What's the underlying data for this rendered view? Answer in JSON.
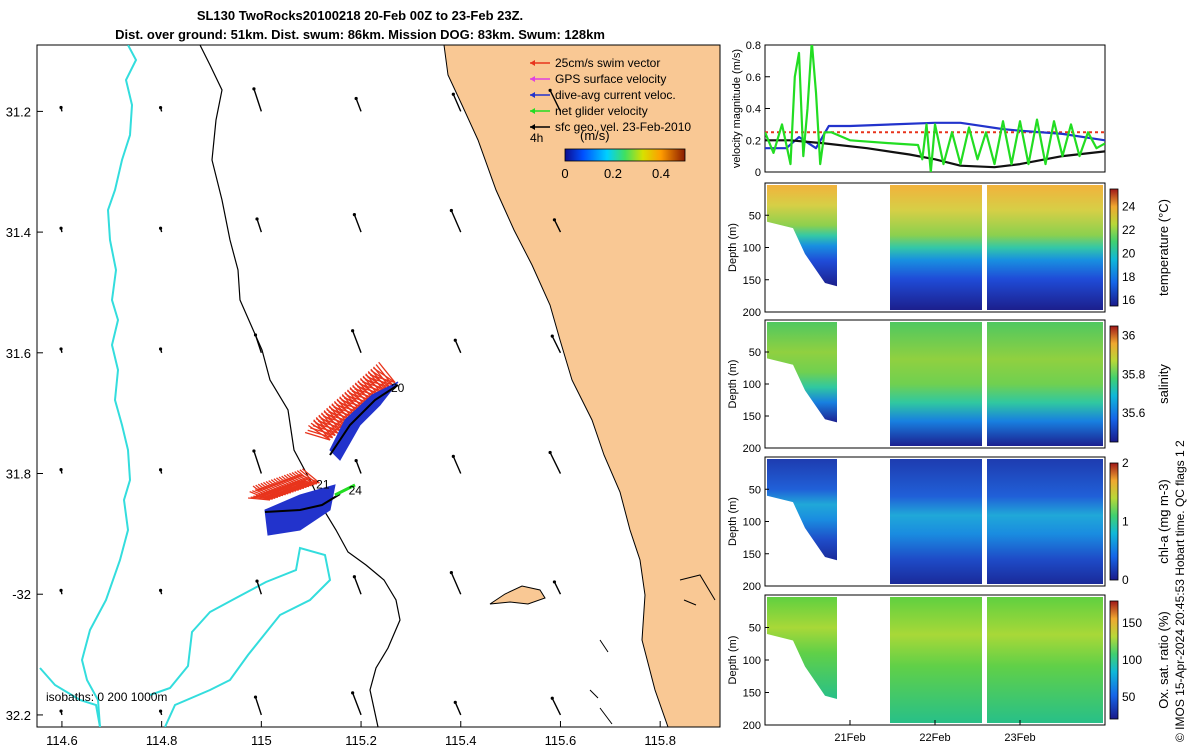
{
  "title": {
    "line1": "SL130 TwoRocks20100218 20-Feb 00Z to 23-Feb 23Z.",
    "line2": "Dist. over ground: 51km. Dist. swum: 86km. Mission DOG: 83km. Swum: 128km"
  },
  "map": {
    "lon_ticks": [
      "114.6",
      "114.8",
      "115",
      "115.2",
      "115.4",
      "115.6",
      "115.8"
    ],
    "lat_ticks": [
      "31.2",
      "31.4",
      "31.6",
      "31.8",
      "-32",
      "32.2"
    ],
    "xlim": [
      114.55,
      115.92
    ],
    "ylim": [
      -32.22,
      -31.09
    ],
    "legend": [
      {
        "label": "25cm/s swim vector",
        "color": "#e8341c"
      },
      {
        "label": "GPS surface velocity",
        "color": "#e040e0"
      },
      {
        "label": "dive-avg current veloc.",
        "color": "#2233cc"
      },
      {
        "label": "net glider velocity",
        "color": "#22dd22"
      },
      {
        "label": "sfc geo. vel. 23-Feb-2010",
        "color": "#000000"
      }
    ],
    "legend_tag": "4h",
    "colorbar": {
      "unit": "(m/s)",
      "ticks": [
        "0",
        "0.2",
        "0.4"
      ],
      "range": [
        0,
        0.5
      ]
    },
    "isobaths_label": "isobaths: 0   200  1000m",
    "day_labels": [
      {
        "text": "20",
        "lon": 115.26,
        "lat": -31.665
      },
      {
        "text": "21",
        "lon": 115.11,
        "lat": -31.825
      },
      {
        "text": "24",
        "lon": 115.175,
        "lat": -31.835
      }
    ],
    "colors": {
      "land": "#f9c894",
      "isobath_1000": "#33dddd",
      "coast": "#000000"
    }
  },
  "chart_data": [
    {
      "type": "line",
      "ylabel": "velocity magnitude (m/s)",
      "ylim": [
        0,
        0.8
      ],
      "yticks": [
        "0",
        "0.2",
        "0.4",
        "0.6",
        "0.8"
      ],
      "x_days": [
        20.0,
        24.0
      ],
      "series": [
        {
          "color": "#e8341c",
          "values": [
            [
              20.0,
              0.25
            ],
            [
              20.7,
              0.25
            ],
            [
              22.0,
              0.25
            ],
            [
              24.0,
              0.25
            ]
          ]
        },
        {
          "color": "#2233cc",
          "values": [
            [
              20.0,
              0.15
            ],
            [
              20.25,
              0.15
            ],
            [
              20.4,
              0.22
            ],
            [
              20.6,
              0.15
            ],
            [
              20.75,
              0.29
            ],
            [
              21.0,
              0.29
            ],
            [
              21.5,
              0.3
            ],
            [
              22.0,
              0.31
            ],
            [
              22.3,
              0.31
            ],
            [
              22.8,
              0.27
            ],
            [
              23.0,
              0.26
            ],
            [
              23.5,
              0.24
            ],
            [
              24.0,
              0.2
            ]
          ]
        },
        {
          "color": "#111111",
          "values": [
            [
              20.0,
              0.2
            ],
            [
              20.3,
              0.2
            ],
            [
              20.7,
              0.18
            ],
            [
              21.2,
              0.15
            ],
            [
              21.7,
              0.11
            ],
            [
              22.0,
              0.08
            ],
            [
              22.3,
              0.04
            ],
            [
              22.7,
              0.03
            ],
            [
              23.0,
              0.05
            ],
            [
              23.5,
              0.1
            ],
            [
              24.0,
              0.13
            ]
          ]
        },
        {
          "color": "#22dd22",
          "values": [
            [
              20.0,
              0.25
            ],
            [
              20.1,
              0.12
            ],
            [
              20.2,
              0.3
            ],
            [
              20.3,
              0.05
            ],
            [
              20.35,
              0.6
            ],
            [
              20.4,
              0.75
            ],
            [
              20.45,
              0.1
            ],
            [
              20.5,
              0.4
            ],
            [
              20.55,
              0.82
            ],
            [
              20.6,
              0.5
            ],
            [
              20.65,
              0.05
            ],
            [
              20.7,
              0.25
            ],
            [
              20.78,
              0.25
            ],
            [
              21.0,
              0.2
            ],
            [
              21.5,
              0.18
            ],
            [
              21.8,
              0.17
            ],
            [
              21.85,
              0.08
            ],
            [
              21.9,
              0.3
            ],
            [
              21.95,
              0.0
            ],
            [
              22.0,
              0.3
            ],
            [
              22.1,
              0.05
            ],
            [
              22.2,
              0.25
            ],
            [
              22.3,
              0.05
            ],
            [
              22.4,
              0.28
            ],
            [
              22.5,
              0.08
            ],
            [
              22.6,
              0.25
            ],
            [
              22.7,
              0.05
            ],
            [
              22.8,
              0.32
            ],
            [
              22.9,
              0.05
            ],
            [
              23.0,
              0.32
            ],
            [
              23.1,
              0.05
            ],
            [
              23.2,
              0.33
            ],
            [
              23.3,
              0.05
            ],
            [
              23.4,
              0.32
            ],
            [
              23.5,
              0.1
            ],
            [
              23.6,
              0.3
            ],
            [
              23.7,
              0.1
            ],
            [
              23.8,
              0.25
            ],
            [
              23.9,
              0.15
            ],
            [
              24.0,
              0.18
            ]
          ]
        }
      ]
    },
    {
      "type": "heatmap",
      "variable": "temperature",
      "colorbar_label": "temperature (°C)",
      "cticks": [
        "16",
        "18",
        "20",
        "22",
        "24"
      ],
      "crange": [
        15.5,
        25.5
      ],
      "ylabel": "Depth (m)",
      "yticks": [
        "50",
        "100",
        "150",
        "200"
      ],
      "ylim": [
        0,
        200
      ]
    },
    {
      "type": "heatmap",
      "variable": "salinity",
      "colorbar_label": "salinity",
      "cticks": [
        "35.6",
        "35.8",
        "36"
      ],
      "crange": [
        35.45,
        36.05
      ],
      "ylabel": "Depth (m)",
      "yticks": [
        "50",
        "100",
        "150",
        "200"
      ],
      "ylim": [
        0,
        200
      ]
    },
    {
      "type": "heatmap",
      "variable": "chl-a",
      "colorbar_label": "chl-a (mg m-3)",
      "cticks": [
        "0",
        "1",
        "2"
      ],
      "crange": [
        0,
        2
      ],
      "ylabel": "Depth (m)",
      "yticks": [
        "50",
        "100",
        "150",
        "200"
      ],
      "ylim": [
        0,
        200
      ]
    },
    {
      "type": "heatmap",
      "variable": "oxygen",
      "colorbar_label": "Ox. sat. ratio (%)",
      "cticks": [
        "50",
        "100",
        "150"
      ],
      "crange": [
        20,
        180
      ],
      "ylabel": "Depth (m)",
      "yticks": [
        "50",
        "100",
        "150",
        "200"
      ],
      "ylim": [
        0,
        200
      ]
    }
  ],
  "time_axis": {
    "labels": [
      "21Feb",
      "22Feb",
      "23Feb"
    ]
  },
  "credit": "© IMOS 15-Apr-2024 20:45:53 Hobart time. QC flags 1  2"
}
